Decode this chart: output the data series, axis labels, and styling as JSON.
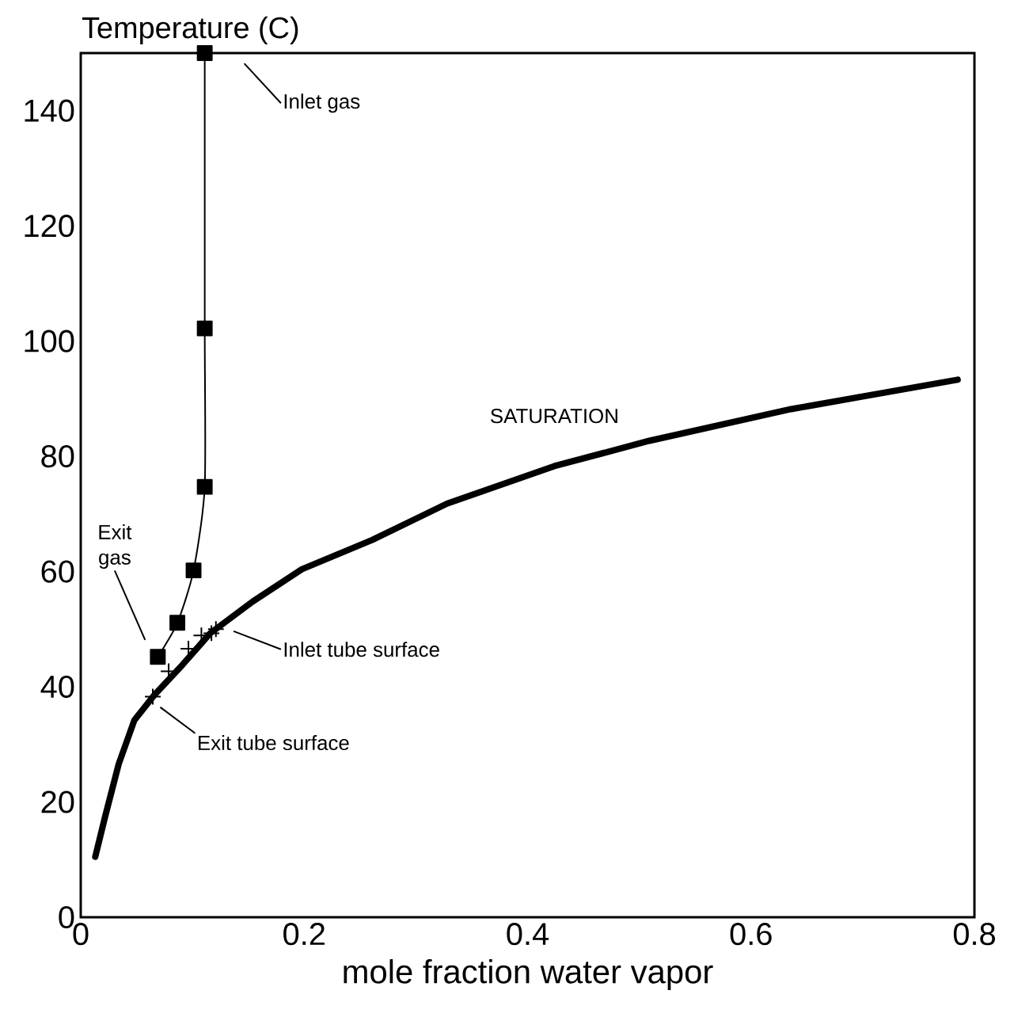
{
  "chart_data": {
    "type": "line",
    "ylabel": "Temperature (C)",
    "xlabel": "mole fraction water vapor",
    "xlim": [
      0,
      0.8
    ],
    "ylim": [
      0,
      150
    ],
    "xticks": [
      0,
      0.2,
      0.4,
      0.6,
      0.8
    ],
    "yticks": [
      0,
      20,
      40,
      60,
      80,
      100,
      120,
      140
    ],
    "grid": false,
    "series": [
      {
        "name": "SATURATION",
        "color": "#000000",
        "marker": "none",
        "line_style": "solid",
        "x": [
          0.013,
          0.022,
          0.034,
          0.048,
          0.066,
          0.091,
          0.116,
          0.154,
          0.198,
          0.261,
          0.328,
          0.424,
          0.509,
          0.636,
          0.785
        ],
        "values": [
          10.5,
          17.6,
          26.6,
          34.2,
          38.6,
          43.8,
          49.3,
          54.8,
          60.4,
          65.5,
          71.8,
          78.3,
          82.7,
          88.2,
          93.3
        ]
      },
      {
        "color": "#000000",
        "marker": "square",
        "line_style": "solid",
        "x": [
          0.069,
          0.0865,
          0.101,
          0.111,
          0.111,
          0.111
        ],
        "values": [
          45.2,
          51.1,
          60.2,
          74.7,
          102.2,
          150
        ]
      },
      {
        "type": "scatter",
        "color": "#000000",
        "marker": "cross",
        "x": [
          0.0645,
          0.0787,
          0.0964,
          0.108,
          0.117,
          0.121
        ],
        "values": [
          38.3,
          42.7,
          46.6,
          48.9,
          49.3,
          50.0
        ]
      }
    ],
    "annotations": [
      "Inlet gas",
      "Exit gas",
      "Inlet tube surface",
      "Exit tube surface"
    ]
  }
}
